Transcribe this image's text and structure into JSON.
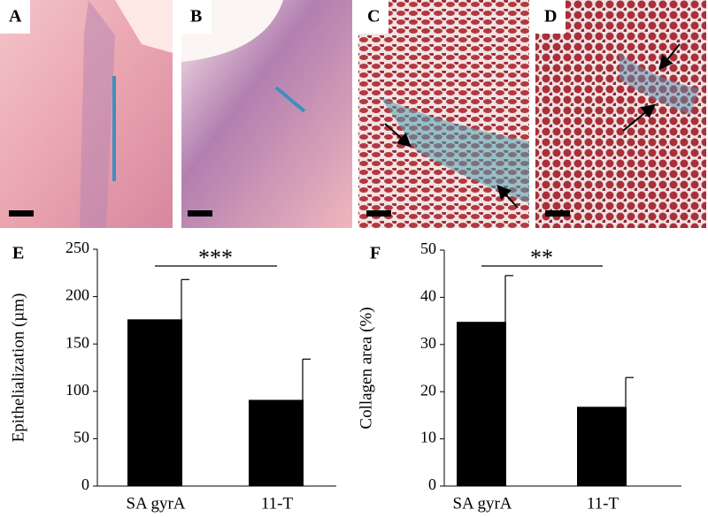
{
  "panels": [
    "A",
    "B",
    "C",
    "D"
  ],
  "chart_data": [
    {
      "type": "bar",
      "panel_label": "E",
      "y_label": "Epithelialization (µm)",
      "categories": [
        "SA gyrA",
        "11-T"
      ],
      "values": [
        176,
        91
      ],
      "errors": [
        42,
        43
      ],
      "color": "#000000",
      "ylim": [
        0,
        250
      ],
      "yticks": [
        0,
        50,
        100,
        150,
        200,
        250
      ],
      "annotation": "***"
    },
    {
      "type": "bar",
      "panel_label": "F",
      "y_label": "Collagen area (%)",
      "categories": [
        "SA gyrA",
        "11-T"
      ],
      "values": [
        34.8,
        16.8
      ],
      "errors": [
        9.8,
        6.2
      ],
      "color": "#000000",
      "ylim": [
        0,
        50
      ],
      "yticks": [
        0,
        10,
        20,
        30,
        40,
        50
      ],
      "annotation": "**"
    }
  ]
}
